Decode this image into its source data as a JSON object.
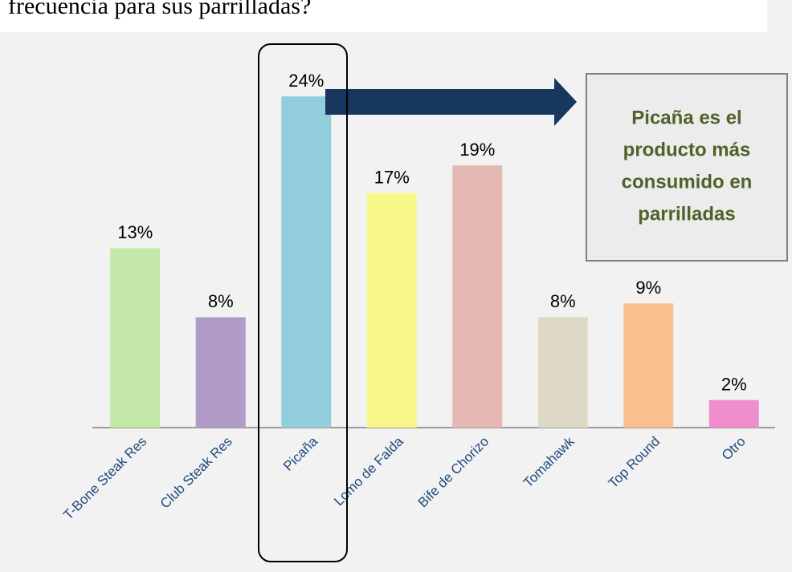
{
  "chart_data": {
    "type": "bar",
    "title": "frecuencia para sus parrilladas?",
    "categories": [
      "T-Bone Steak Res",
      "Club Steak Res",
      "Picaña",
      "Lomo de Falda",
      "Bife de Chorizo",
      "Tomahawk",
      "Top Round",
      "Otro"
    ],
    "values": [
      13,
      8,
      24,
      17,
      19,
      8,
      9,
      2
    ],
    "value_labels": [
      "13%",
      "8%",
      "24%",
      "17%",
      "19%",
      "8%",
      "9%",
      "2%"
    ],
    "colors": [
      "#c4e8a8",
      "#b19cc8",
      "#92cddc",
      "#f8f88a",
      "#e6b8b4",
      "#ddd9c4",
      "#fac090",
      "#f08dcd"
    ],
    "ylim": [
      0,
      30
    ],
    "annotation": [
      "Picaña es el",
      "producto más",
      "consumido en",
      "parrilladas"
    ]
  }
}
